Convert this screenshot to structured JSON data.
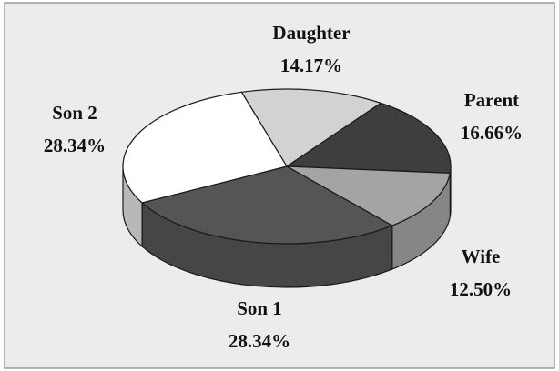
{
  "chart_data": {
    "type": "pie",
    "categories": [
      "Daughter",
      "Parent",
      "Wife",
      "Son 1",
      "Son 2"
    ],
    "values": [
      14.17,
      16.66,
      12.5,
      28.34,
      28.34
    ],
    "value_labels": [
      "14.17%",
      "16.66%",
      "12.50%",
      "28.34%",
      "28.34%"
    ],
    "colors": [
      "#d2d2d2",
      "#3e3e3e",
      "#a4a4a4",
      "#555555",
      "#ffffff"
    ]
  }
}
